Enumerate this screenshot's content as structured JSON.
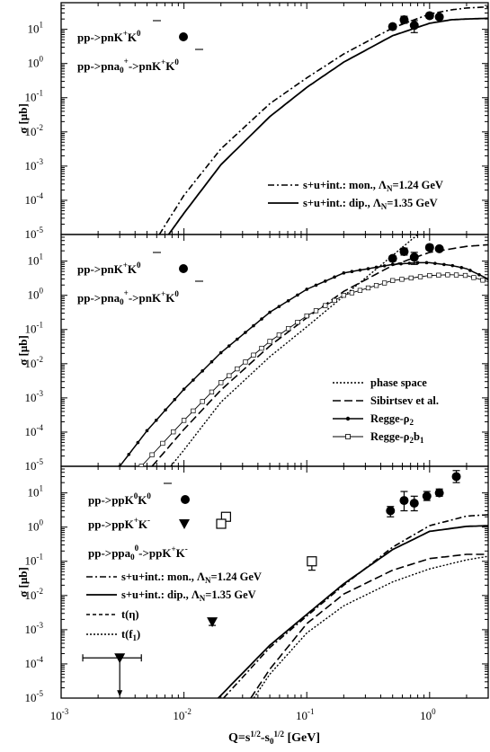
{
  "chart_data": [
    {
      "type": "line",
      "panel": "top",
      "ylabel": "σ [μb]",
      "xscale": "log",
      "yscale": "log",
      "xlim": [
        0.001,
        3
      ],
      "ylim": [
        1e-05,
        60
      ],
      "reaction_labels": [
        "pp->pnK+K̄0 ●",
        "pp->pna0+->pnK+K̄0"
      ],
      "series": [
        {
          "name": "s+u+int.: mon., ΛN=1.24 GeV",
          "style": "dashdot",
          "x": [
            0.0063,
            0.01,
            0.02,
            0.05,
            0.1,
            0.2,
            0.5,
            1,
            1.5,
            2,
            3
          ],
          "y": [
            1e-05,
            0.00014,
            0.0032,
            0.067,
            0.38,
            1.9,
            11,
            28,
            37,
            42,
            45
          ]
        },
        {
          "name": "s+u+int.: dip., ΛN=1.35 GeV",
          "style": "solid",
          "x": [
            0.0075,
            0.01,
            0.02,
            0.05,
            0.1,
            0.2,
            0.5,
            1,
            1.5,
            2,
            3
          ],
          "y": [
            1e-05,
            4.2e-05,
            0.0011,
            0.028,
            0.2,
            1.1,
            6.5,
            15,
            19,
            20,
            21
          ]
        },
        {
          "name": "data",
          "style": "marker-circle",
          "x": [
            0.5,
            0.62,
            0.75,
            1.0,
            1.2
          ],
          "y": [
            12,
            19,
            13,
            25,
            23
          ],
          "yerr_lo": [
            10,
            15,
            8,
            21,
            20
          ],
          "yerr_hi": [
            14,
            24,
            18,
            30,
            26
          ]
        }
      ]
    },
    {
      "type": "line",
      "panel": "middle",
      "ylabel": "σ [μb]",
      "xscale": "log",
      "yscale": "log",
      "xlim": [
        0.001,
        3
      ],
      "ylim": [
        1e-05,
        60
      ],
      "reaction_labels": [
        "pp->pnK+K̄0 ●",
        "pp->pna0+->pnK+K̄0"
      ],
      "series": [
        {
          "name": "phase space",
          "style": "dotted",
          "x": [
            0.0078,
            0.01,
            0.02,
            0.05,
            0.1,
            0.2,
            0.4,
            0.8,
            1.5
          ],
          "y": [
            1e-05,
            3e-05,
            0.00075,
            0.016,
            0.12,
            0.95,
            7.5,
            60,
            120
          ]
        },
        {
          "name": "Sibirtsev et al.",
          "style": "dashed",
          "x": [
            0.0055,
            0.01,
            0.02,
            0.05,
            0.1,
            0.2,
            0.5,
            1,
            2,
            3
          ],
          "y": [
            1e-05,
            0.00012,
            0.0017,
            0.033,
            0.22,
            1.3,
            7.5,
            18,
            27,
            30
          ]
        },
        {
          "name": "Regge-ρ2",
          "style": "solid-dot",
          "x": [
            0.003,
            0.005,
            0.01,
            0.02,
            0.05,
            0.1,
            0.2,
            0.5,
            0.8,
            1.0,
            1.5,
            2,
            3
          ],
          "y": [
            1e-05,
            0.00011,
            0.0018,
            0.021,
            0.32,
            1.5,
            4.5,
            8,
            9,
            9,
            7.5,
            6,
            3
          ]
        },
        {
          "name": "Regge-ρ2b1",
          "style": "solid-square",
          "x": [
            0.0045,
            0.01,
            0.02,
            0.05,
            0.1,
            0.2,
            0.5,
            1,
            1.5,
            2,
            3
          ],
          "y": [
            1e-05,
            0.00022,
            0.0028,
            0.045,
            0.25,
            1,
            2.7,
            3.8,
            4,
            3.8,
            2.5
          ]
        },
        {
          "name": "data",
          "style": "marker-circle",
          "x": [
            0.5,
            0.62,
            0.75,
            1.0,
            1.2
          ],
          "y": [
            12,
            19,
            13,
            25,
            23
          ],
          "yerr_lo": [
            10,
            15,
            8,
            21,
            20
          ],
          "yerr_hi": [
            14,
            24,
            18,
            30,
            26
          ]
        }
      ]
    },
    {
      "type": "line",
      "panel": "bottom",
      "ylabel": "σ [μb]",
      "xlabel": "Q=s1/2-s01/2 [GeV]",
      "xscale": "log",
      "yscale": "log",
      "xlim": [
        0.001,
        3
      ],
      "ylim": [
        1e-05,
        60
      ],
      "reaction_labels": [
        "pp->ppK0K̄0 ●",
        "pp->ppK+K- ▼ □",
        "pp->ppa00->ppK+K-"
      ],
      "series": [
        {
          "name": "s+u+int.: mon., ΛN=1.24 GeV",
          "style": "dashdot",
          "x": [
            0.021,
            0.05,
            0.1,
            0.2,
            0.5,
            1,
            2,
            3
          ],
          "y": [
            1e-05,
            0.0003,
            0.0025,
            0.02,
            0.26,
            1.1,
            2.1,
            2.3
          ]
        },
        {
          "name": "s+u+int.: dip., ΛN=1.35 GeV",
          "style": "solid",
          "x": [
            0.019,
            0.05,
            0.1,
            0.2,
            0.5,
            1,
            2,
            3
          ],
          "y": [
            1e-05,
            0.00035,
            0.0028,
            0.022,
            0.22,
            0.75,
            1.05,
            1.1
          ]
        },
        {
          "name": "t(η)",
          "style": "dashed",
          "x": [
            0.035,
            0.05,
            0.1,
            0.2,
            0.5,
            1,
            2,
            3
          ],
          "y": [
            1e-05,
            7e-05,
            0.0015,
            0.011,
            0.055,
            0.12,
            0.16,
            0.16
          ]
        },
        {
          "name": "t(f1)",
          "style": "dotted",
          "x": [
            0.037,
            0.05,
            0.1,
            0.2,
            0.5,
            1,
            2,
            3
          ],
          "y": [
            1e-05,
            5e-05,
            0.0008,
            0.005,
            0.025,
            0.06,
            0.11,
            0.14
          ]
        },
        {
          "name": "pp->ppK0K̄0",
          "style": "marker-circle",
          "x": [
            0.48,
            0.62,
            0.75,
            0.95,
            1.2,
            1.65
          ],
          "y": [
            3,
            6,
            5,
            8,
            10,
            30
          ],
          "yerr_lo": [
            2,
            3,
            3,
            6,
            8,
            20
          ],
          "yerr_hi": [
            4,
            11,
            8,
            11,
            13,
            45
          ]
        },
        {
          "name": "pp->ppK+K- (▼)",
          "style": "marker-triangle",
          "x": [
            0.003,
            0.017
          ],
          "y": [
            0.00015,
            0.0017
          ],
          "xerr": [
            0.0015,
            0
          ]
        },
        {
          "name": "pp->ppK+K- (□)",
          "style": "marker-square",
          "x": [
            0.022,
            0.11
          ],
          "y": [
            2,
            0.1
          ],
          "yerr_lo": [
            null,
            0.055
          ],
          "yerr_hi": [
            null,
            0.13
          ]
        }
      ]
    }
  ],
  "axes": {
    "x_ticks": [
      "10-3",
      "10-2",
      "10-1",
      "100"
    ],
    "y_ticks": [
      "10-5",
      "10-4",
      "10-3",
      "10-2",
      "10-1",
      "100",
      "101"
    ]
  }
}
